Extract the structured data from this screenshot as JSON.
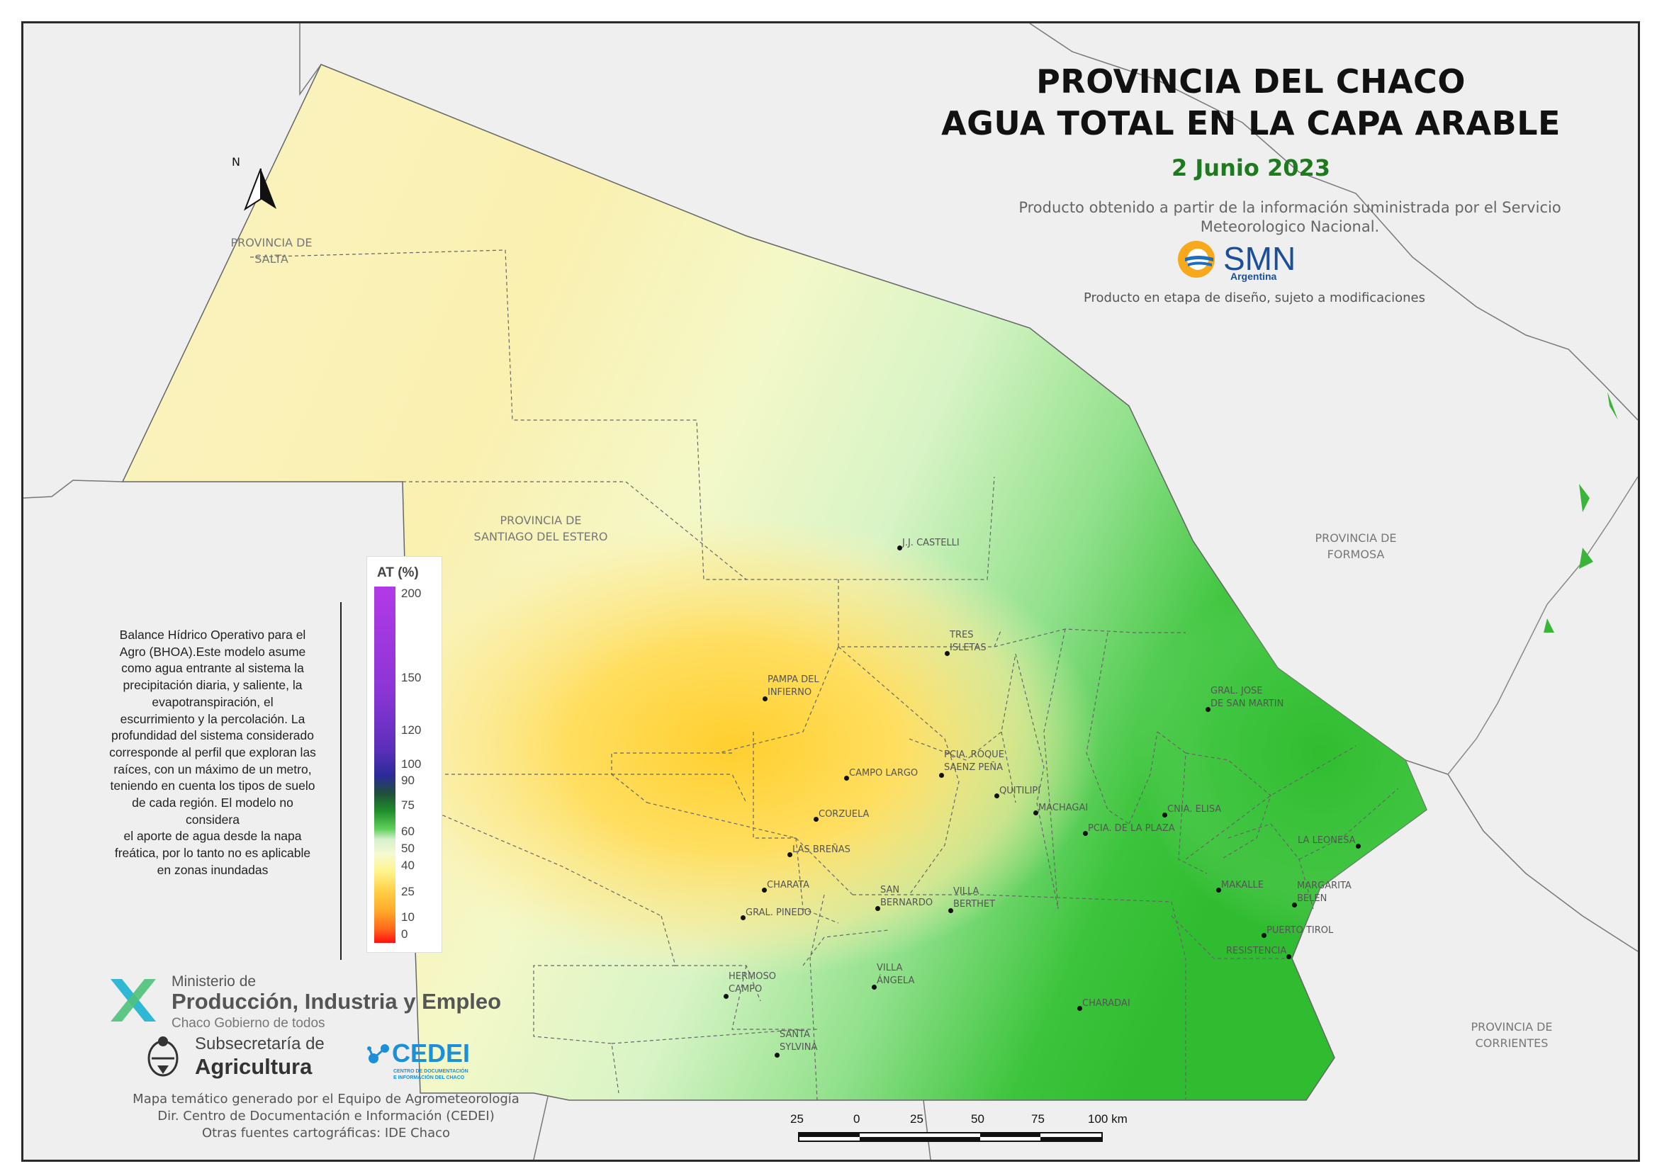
{
  "title": {
    "line1": "PROVINCIA DEL CHACO",
    "line2": "AGUA TOTAL EN LA CAPA ARABLE",
    "date": "2 Junio 2023"
  },
  "source": {
    "line1": "Producto obtenido a partir de la información suministrada por el Servicio",
    "line2": "Meteorologico Nacional.",
    "disclaimer": "Producto en etapa de diseño, sujeto a modificaciones"
  },
  "smn_logo": {
    "name": "SMN",
    "sub": "Argentina"
  },
  "provinces": [
    {
      "label": "PROVINCIA DE\nSALTA"
    },
    {
      "label": "PROVINCIA DE\nSANTIAGO DEL ESTERO"
    },
    {
      "label": "PROVINCIA DE\nFORMOSA"
    },
    {
      "label": "PROVINCIA DE\nCORRIENTES"
    }
  ],
  "cities": [
    {
      "name": "J.J. CASTELLI"
    },
    {
      "name": "TRES\nISLETAS"
    },
    {
      "name": "PAMPA DEL\nINFIERNO"
    },
    {
      "name": "GRAL. JOSE\nDE SAN MARTIN"
    },
    {
      "name": "PCIA. ROQUE\nSAENZ PEÑA"
    },
    {
      "name": "CAMPO LARGO"
    },
    {
      "name": "QUITILIPI"
    },
    {
      "name": "MACHAGAI"
    },
    {
      "name": "CNIA. ELISA"
    },
    {
      "name": "PCIA. DE LA PLAZA"
    },
    {
      "name": "CORZUELA"
    },
    {
      "name": "LA LEONESA"
    },
    {
      "name": "LAS BREÑAS"
    },
    {
      "name": "CHARATA"
    },
    {
      "name": "MAKALLE"
    },
    {
      "name": "MARGARITA\nBELEN"
    },
    {
      "name": "SAN\nBERNARDO"
    },
    {
      "name": "VILLA\nBERTHET"
    },
    {
      "name": "GRAL. PINEDO"
    },
    {
      "name": "PUERTO TIROL"
    },
    {
      "name": "RESISTENCIA"
    },
    {
      "name": "VILLA\nÁNGELA"
    },
    {
      "name": "HERMOSO\nCAMPO"
    },
    {
      "name": "CHARADAI"
    },
    {
      "name": "SANTA\nSYLVINA"
    }
  ],
  "legend": {
    "title": "AT (%)",
    "ticks": [
      "200",
      "150",
      "120",
      "100",
      "90",
      "75",
      "60",
      "50",
      "40",
      "25",
      "10",
      "0"
    ],
    "colors": [
      "#b23ae8",
      "#5a2fb8",
      "#2b2b99",
      "#1f8f2a",
      "#5fd05a",
      "#f5fad0",
      "#fff48c",
      "#ffaa2a",
      "#ff1010"
    ]
  },
  "bhoa_text": [
    "Balance Hídrico Operativo para el",
    "Agro (BHOA).Este modelo asume",
    "como agua entrante al sistema la",
    "precipitación diaria, y saliente, la",
    "evapotranspiración, el",
    "escurrimiento y la percolación. La",
    "profundidad del sistema considerado",
    "corresponde al perfil que exploran las",
    "raíces, con un máximo de un metro,",
    "teniendo en cuenta los tipos de suelo",
    "de cada región. El modelo no",
    "considera",
    "el aporte de agua desde la napa",
    "freática, por lo tanto no es aplicable",
    "en zonas inundadas"
  ],
  "ministerio": {
    "line1": "Ministerio de",
    "line2": "Producción, Industria y Empleo",
    "line3": "Chaco Gobierno de todos"
  },
  "subsecretaria": {
    "line1": "Subsecretaría de",
    "line2": "Agricultura"
  },
  "cedei": {
    "name": "CEDEI",
    "sub1": "CENTRO DE DOCUMENTACIÓN",
    "sub2": "E INFORMACIÓN DEL CHACO"
  },
  "credits": [
    "Mapa temático generado por el Equipo de Agrometeorología",
    "Dir. Centro de Documentación e Información (CEDEI)",
    "Otras fuentes cartográficas: IDE Chaco"
  ],
  "scale": {
    "labels": [
      "25",
      "0",
      "25",
      "50",
      "75",
      "100 km"
    ]
  },
  "north_arrow": {
    "label": "N",
    "icon": "north-arrow-icon"
  }
}
